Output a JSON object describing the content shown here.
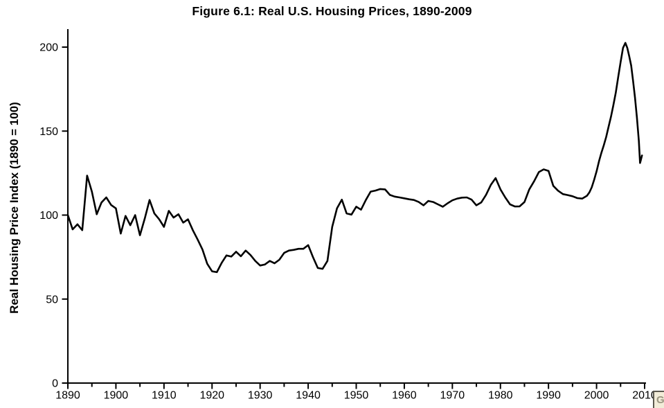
{
  "figure": {
    "title": "Figure 6.1: Real U.S. Housing Prices, 1890-2009",
    "y_axis_label": "Real Housing Price Index (1890 = 100)"
  },
  "corner_badge": {
    "label": "G"
  },
  "chart_data": {
    "type": "line",
    "title": "Figure 6.1: Real U.S. Housing Prices, 1890-2009",
    "xlabel": "",
    "ylabel": "Real Housing Price Index (1890 = 100)",
    "xlim": [
      1890,
      2010
    ],
    "ylim": [
      0,
      200
    ],
    "y_ticks": [
      0,
      50,
      100,
      150,
      200
    ],
    "x_ticks_major": [
      1890,
      1900,
      1910,
      1920,
      1930,
      1940,
      1950,
      1960,
      1970,
      1980,
      1990,
      2000,
      2010
    ],
    "x_ticks_minor": [
      1895,
      1905,
      1915,
      1925,
      1935,
      1945,
      1955,
      1965,
      1975,
      1985,
      1995,
      2005
    ],
    "grid": false,
    "legend_position": "none",
    "line_color": "#000000",
    "background_color": "#ffffff",
    "series": [
      {
        "name": "Real Housing Price Index (1890 = 100)",
        "points": [
          [
            1890,
            100
          ],
          [
            1891,
            91.5
          ],
          [
            1892,
            94.5
          ],
          [
            1893,
            91
          ],
          [
            1894,
            123.5
          ],
          [
            1895,
            114
          ],
          [
            1896,
            100.5
          ],
          [
            1897,
            107.5
          ],
          [
            1898,
            110.5
          ],
          [
            1899,
            106
          ],
          [
            1900,
            104
          ],
          [
            1901,
            89
          ],
          [
            1902,
            99.5
          ],
          [
            1903,
            94
          ],
          [
            1904,
            100
          ],
          [
            1905,
            88
          ],
          [
            1906,
            98
          ],
          [
            1907,
            109
          ],
          [
            1908,
            101
          ],
          [
            1909,
            97.5
          ],
          [
            1910,
            93
          ],
          [
            1911,
            102.5
          ],
          [
            1912,
            98.5
          ],
          [
            1913,
            100.5
          ],
          [
            1914,
            95.5
          ],
          [
            1915,
            97.5
          ],
          [
            1916,
            91
          ],
          [
            1917,
            85.5
          ],
          [
            1918,
            79.5
          ],
          [
            1919,
            71
          ],
          [
            1920,
            66.5
          ],
          [
            1921,
            66
          ],
          [
            1922,
            71.5
          ],
          [
            1923,
            76
          ],
          [
            1924,
            75.3
          ],
          [
            1925,
            78.2
          ],
          [
            1926,
            75.5
          ],
          [
            1927,
            78.9
          ],
          [
            1928,
            76.2
          ],
          [
            1929,
            72.7
          ],
          [
            1930,
            70
          ],
          [
            1931,
            70.6
          ],
          [
            1932,
            72.7
          ],
          [
            1933,
            71.3
          ],
          [
            1934,
            73.4
          ],
          [
            1935,
            77.5
          ],
          [
            1936,
            78.9
          ],
          [
            1937,
            79.3
          ],
          [
            1938,
            79.9
          ],
          [
            1939,
            79.9
          ],
          [
            1940,
            82.1
          ],
          [
            1941,
            75
          ],
          [
            1942,
            68.5
          ],
          [
            1943,
            68
          ],
          [
            1944,
            72.7
          ],
          [
            1945,
            93
          ],
          [
            1946,
            104
          ],
          [
            1947,
            109.2
          ],
          [
            1948,
            101
          ],
          [
            1949,
            100.3
          ],
          [
            1950,
            105
          ],
          [
            1951,
            103.2
          ],
          [
            1952,
            109
          ],
          [
            1953,
            114
          ],
          [
            1954,
            114.6
          ],
          [
            1955,
            115.5
          ],
          [
            1956,
            115.3
          ],
          [
            1957,
            112
          ],
          [
            1958,
            111
          ],
          [
            1959,
            110.5
          ],
          [
            1960,
            110
          ],
          [
            1961,
            109.4
          ],
          [
            1962,
            109
          ],
          [
            1963,
            107.8
          ],
          [
            1964,
            105.8
          ],
          [
            1965,
            108.4
          ],
          [
            1966,
            107.8
          ],
          [
            1967,
            106.4
          ],
          [
            1968,
            105
          ],
          [
            1969,
            107
          ],
          [
            1970,
            108.8
          ],
          [
            1971,
            109.8
          ],
          [
            1972,
            110.4
          ],
          [
            1973,
            110.5
          ],
          [
            1974,
            109.2
          ],
          [
            1975,
            105.8
          ],
          [
            1976,
            107.5
          ],
          [
            1977,
            112
          ],
          [
            1978,
            118
          ],
          [
            1979,
            122
          ],
          [
            1980,
            115.3
          ],
          [
            1981,
            110.5
          ],
          [
            1982,
            106.4
          ],
          [
            1983,
            105.1
          ],
          [
            1984,
            105.2
          ],
          [
            1985,
            107.8
          ],
          [
            1986,
            115.3
          ],
          [
            1987,
            120.1
          ],
          [
            1988,
            125.6
          ],
          [
            1989,
            127.2
          ],
          [
            1990,
            126.3
          ],
          [
            1991,
            117.4
          ],
          [
            1992,
            114.5
          ],
          [
            1993,
            112.5
          ],
          [
            1994,
            111.9
          ],
          [
            1995,
            111.2
          ],
          [
            1996,
            110.1
          ],
          [
            1997,
            109.8
          ],
          [
            1998,
            111.5
          ],
          [
            1998.5,
            113.5
          ],
          [
            1999,
            116.5
          ],
          [
            1999.5,
            121
          ],
          [
            2000,
            126
          ],
          [
            2000.5,
            132
          ],
          [
            2001,
            137
          ],
          [
            2001.5,
            141.5
          ],
          [
            2002,
            146.5
          ],
          [
            2002.5,
            152.5
          ],
          [
            2003,
            158.5
          ],
          [
            2003.5,
            165.5
          ],
          [
            2004,
            173
          ],
          [
            2004.5,
            182
          ],
          [
            2005,
            191
          ],
          [
            2005.5,
            199.5
          ],
          [
            2006,
            202.5
          ],
          [
            2006.4,
            199.5
          ],
          [
            2006.8,
            194.5
          ],
          [
            2007.2,
            189
          ],
          [
            2007.6,
            180
          ],
          [
            2008,
            170
          ],
          [
            2008.4,
            158
          ],
          [
            2008.8,
            144
          ],
          [
            2009.05,
            131
          ],
          [
            2009.2,
            132.5
          ],
          [
            2009.45,
            135.5
          ]
        ]
      }
    ]
  }
}
